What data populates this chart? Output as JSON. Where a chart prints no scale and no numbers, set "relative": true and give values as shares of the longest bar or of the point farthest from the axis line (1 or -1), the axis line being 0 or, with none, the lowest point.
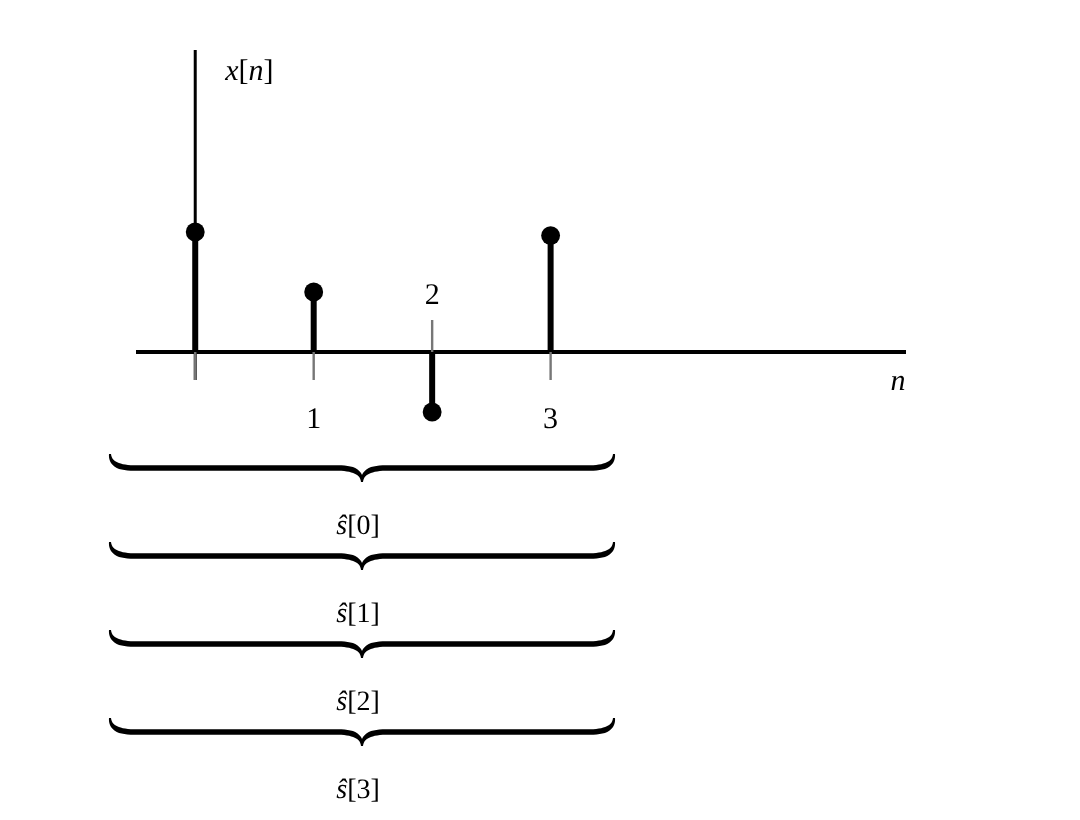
{
  "chart_data": {
    "type": "lollipop",
    "x": [
      0,
      1,
      2,
      3
    ],
    "values": [
      1,
      0.5,
      -0.5,
      0.97
    ],
    "relative": true,
    "color": "#000000",
    "marker": "circle",
    "xlim": [
      -0.5,
      6
    ],
    "xticks": [
      {
        "value": 0,
        "label": null
      },
      1,
      {
        "value": 2,
        "label": null
      },
      3
    ],
    "xlabel": "n",
    "ylabel": "x[n]",
    "annotations": [
      "2",
      "ŝ[0]",
      "ŝ[1]",
      "ŝ[2]",
      "ŝ[3]"
    ]
  }
}
